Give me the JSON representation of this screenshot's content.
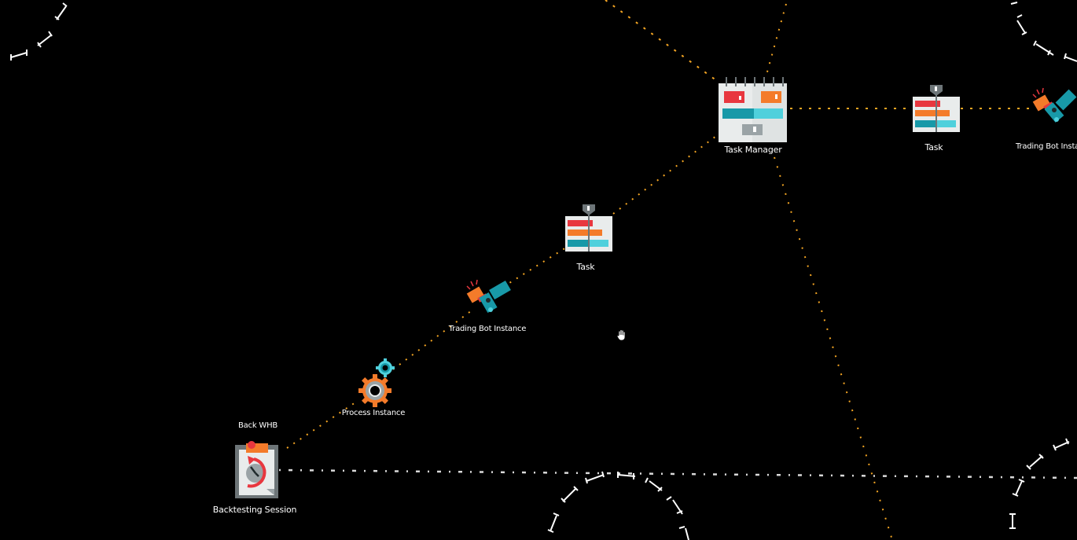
{
  "colors": {
    "background": "#000000",
    "link": "#f5a623",
    "link_white": "#d9d9d9",
    "red": "#e8373f",
    "orange": "#f47b2a",
    "teal": "#1899a8",
    "cyan": "#4fd0dc",
    "gray": "#9aa3a6",
    "paper": "#e9ecec"
  },
  "nodes": {
    "task_manager": {
      "label": "Task Manager",
      "icon": "task-manager-icon"
    },
    "task_main": {
      "label": "Task",
      "icon": "task-icon"
    },
    "task_right": {
      "label": "Task",
      "icon": "task-icon"
    },
    "trading_bot_main": {
      "label": "Trading Bot Instance",
      "icon": "trading-bot-icon"
    },
    "trading_bot_right": {
      "label": "Trading Bot Insta",
      "icon": "trading-bot-icon"
    },
    "process_instance": {
      "label": "Process Instance",
      "icon": "gears-icon"
    },
    "backtesting_session": {
      "label": "Backtesting Session",
      "icon": "backtesting-session-icon"
    }
  },
  "annotations": {
    "back_whb": "Back WHB"
  },
  "cursor": {
    "icon": "hand-cursor-icon"
  }
}
